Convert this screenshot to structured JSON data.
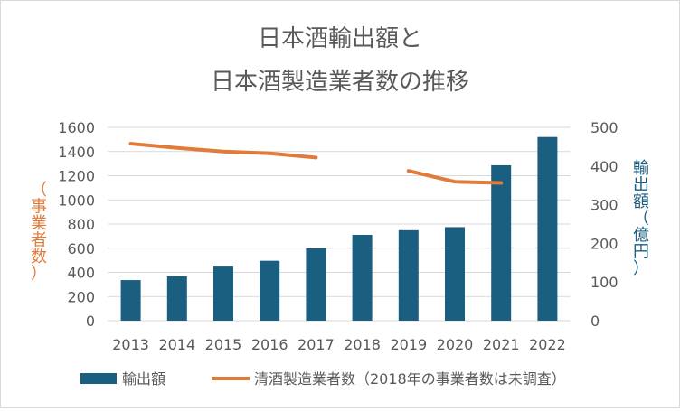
{
  "chart_data": {
    "type": "bar",
    "title_lines": [
      "日本酒輸出額と",
      "日本酒製造業者数の推移"
    ],
    "categories": [
      "2013",
      "2014",
      "2015",
      "2016",
      "2017",
      "2018",
      "2019",
      "2020",
      "2021",
      "2022"
    ],
    "series": [
      {
        "name": "輸出額",
        "type": "bar",
        "axis": "right",
        "color": "#1b5f80",
        "values": [
          105,
          115,
          140,
          155,
          187,
          222,
          234,
          242,
          402,
          475
        ]
      },
      {
        "name": "清酒製造業者数（2018年の事業者数は未調査）",
        "type": "line",
        "axis": "left",
        "color": "#e07b39",
        "values": [
          1465,
          1430,
          1400,
          1385,
          1350,
          null,
          1240,
          1150,
          1140,
          null
        ]
      }
    ],
    "left_axis": {
      "label": "（事業者数）",
      "label_chars": [
        "（",
        "事",
        "業",
        "者",
        "数",
        "）"
      ],
      "min": 0,
      "max": 1600,
      "step": 200,
      "ticks": [
        "0",
        "200",
        "400",
        "600",
        "800",
        "1000",
        "1200",
        "1400",
        "1600"
      ],
      "label_color": "#e07b39"
    },
    "right_axis": {
      "label": "輸出額（億円）",
      "label_chars": [
        "輸",
        "出",
        "額",
        "（",
        "億",
        "円",
        "）"
      ],
      "min": 0,
      "max": 500,
      "step": 100,
      "ticks": [
        "0",
        "100",
        "200",
        "300",
        "400",
        "500"
      ],
      "label_color": "#1b5f80"
    },
    "grid": true,
    "legend_position": "bottom"
  }
}
